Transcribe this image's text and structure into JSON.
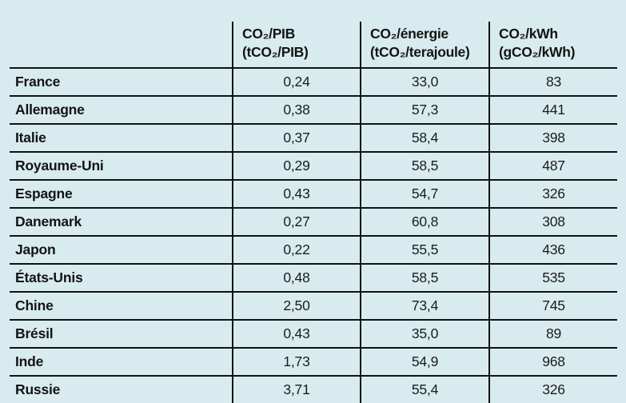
{
  "colors": {
    "background": "#d8ecef",
    "line": "#111111",
    "text": "#141414"
  },
  "chart_data": {
    "type": "table",
    "title": "",
    "columns": [
      {
        "line1": "",
        "line2": ""
      },
      {
        "line1": "CO₂/PIB",
        "line2": "(tCO₂/PIB)"
      },
      {
        "line1": "CO₂/énergie",
        "line2": "(tCO₂/terajoule)"
      },
      {
        "line1": "CO₂/kWh",
        "line2": "(gCO₂/kWh)"
      }
    ],
    "rows": [
      {
        "country": "France",
        "co2_pib": "0,24",
        "co2_energie": "33,0",
        "co2_kwh": "83"
      },
      {
        "country": "Allemagne",
        "co2_pib": "0,38",
        "co2_energie": "57,3",
        "co2_kwh": "441"
      },
      {
        "country": "Italie",
        "co2_pib": "0,37",
        "co2_energie": "58,4",
        "co2_kwh": "398"
      },
      {
        "country": "Royaume-Uni",
        "co2_pib": "0,29",
        "co2_energie": "58,5",
        "co2_kwh": "487"
      },
      {
        "country": "Espagne",
        "co2_pib": "0,43",
        "co2_energie": "54,7",
        "co2_kwh": "326"
      },
      {
        "country": "Danemark",
        "co2_pib": "0,27",
        "co2_energie": "60,8",
        "co2_kwh": "308"
      },
      {
        "country": "Japon",
        "co2_pib": "0,22",
        "co2_energie": "55,5",
        "co2_kwh": "436"
      },
      {
        "country": "États-Unis",
        "co2_pib": "0,48",
        "co2_energie": "58,5",
        "co2_kwh": "535"
      },
      {
        "country": "Chine",
        "co2_pib": "2,50",
        "co2_energie": "73,4",
        "co2_kwh": "745"
      },
      {
        "country": "Brésil",
        "co2_pib": "0,43",
        "co2_energie": "35,0",
        "co2_kwh": "89"
      },
      {
        "country": "Inde",
        "co2_pib": "1,73",
        "co2_energie": "54,9",
        "co2_kwh": "968"
      },
      {
        "country": "Russie",
        "co2_pib": "3,71",
        "co2_energie": "55,4",
        "co2_kwh": "326"
      }
    ]
  }
}
